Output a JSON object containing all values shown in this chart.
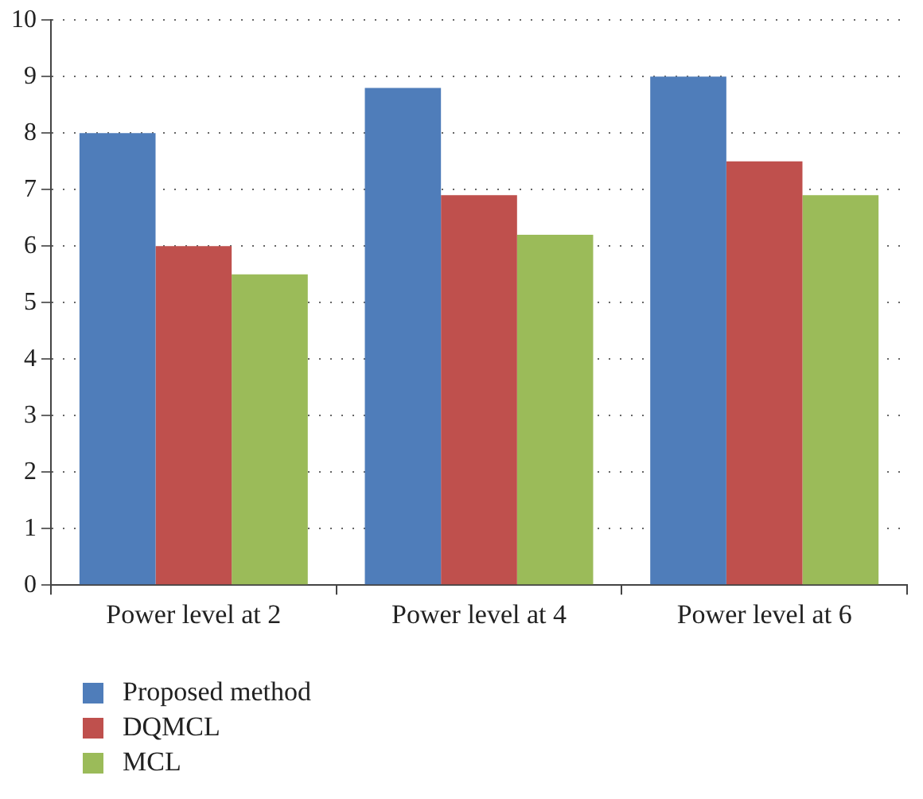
{
  "chart_data": {
    "type": "bar",
    "categories": [
      "Power level at 2",
      "Power level at 4",
      "Power level at 6"
    ],
    "series": [
      {
        "name": "Proposed method",
        "color": "#4f7dba",
        "values": [
          8,
          8.8,
          9
        ]
      },
      {
        "name": "DQMCL",
        "color": "#bf504d",
        "values": [
          6,
          6.9,
          7.5
        ]
      },
      {
        "name": "MCL",
        "color": "#9bbb59",
        "values": [
          5.5,
          6.2,
          6.9
        ]
      }
    ],
    "ylim": [
      0,
      10
    ],
    "yticks": [
      0,
      1,
      2,
      3,
      4,
      5,
      6,
      7,
      8,
      9,
      10
    ],
    "grid": "y",
    "legend": "bottom left"
  }
}
